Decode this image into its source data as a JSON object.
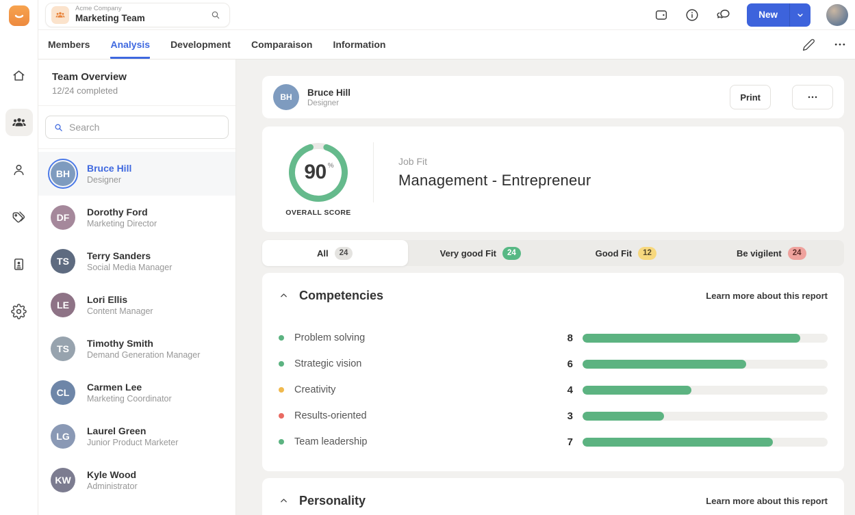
{
  "app": {
    "rail_icons": [
      "home",
      "team",
      "person",
      "tags",
      "id-card",
      "settings"
    ],
    "rail_active": "team"
  },
  "topbar": {
    "company": "Acme Company",
    "team": "Marketing Team",
    "new_label": "New",
    "action_icons": [
      "wallet",
      "info",
      "chat"
    ]
  },
  "tabs": [
    {
      "label": "Members",
      "active": false
    },
    {
      "label": "Analysis",
      "active": true
    },
    {
      "label": "Development",
      "active": false
    },
    {
      "label": "Comparaison",
      "active": false
    },
    {
      "label": "Information",
      "active": false
    }
  ],
  "member_panel": {
    "title": "Team Overview",
    "subtitle": "12/24 completed",
    "search_placeholder": "Search",
    "members": [
      {
        "name": "Bruce Hill",
        "role": "Designer",
        "selected": true
      },
      {
        "name": "Dorothy Ford",
        "role": "Marketing Director",
        "selected": false
      },
      {
        "name": "Terry Sanders",
        "role": "Social Media Manager",
        "selected": false
      },
      {
        "name": "Lori Ellis",
        "role": "Content Manager",
        "selected": false
      },
      {
        "name": "Timothy Smith",
        "role": "Demand Generation Manager",
        "selected": false
      },
      {
        "name": "Carmen Lee",
        "role": "Marketing Coordinator",
        "selected": false
      },
      {
        "name": "Laurel Green",
        "role": "Junior Product Marketer",
        "selected": false
      },
      {
        "name": "Kyle Wood",
        "role": "Administrator",
        "selected": false
      }
    ]
  },
  "report": {
    "header": {
      "name": "Bruce Hill",
      "role": "Designer",
      "print_label": "Print"
    },
    "overall": {
      "value": 90,
      "display": "90",
      "unit": "%",
      "label": "OVERALL SCORE"
    },
    "job_fit": {
      "label": "Job Fit",
      "value": "Management - Entrepreneur"
    },
    "filters": [
      {
        "label": "All",
        "count": "24",
        "variant": "gray",
        "active": true
      },
      {
        "label": "Very good Fit",
        "count": "24",
        "variant": "green",
        "active": false
      },
      {
        "label": "Good Fit",
        "count": "12",
        "variant": "yellow",
        "active": false
      },
      {
        "label": "Be vigilent",
        "count": "24",
        "variant": "red",
        "active": false
      }
    ],
    "competencies": {
      "title": "Competencies",
      "learn_more": "Learn more about this report",
      "scale_max": 9,
      "rows": [
        {
          "label": "Problem solving",
          "value": 8,
          "dot": "green"
        },
        {
          "label": "Strategic vision",
          "value": 6,
          "dot": "green"
        },
        {
          "label": "Creativity",
          "value": 4,
          "dot": "yellow"
        },
        {
          "label": "Results-oriented",
          "value": 3,
          "dot": "red"
        },
        {
          "label": "Team leadership",
          "value": 7,
          "dot": "green"
        }
      ]
    },
    "personality": {
      "title": "Personality",
      "learn_more": "Learn more about this report"
    }
  },
  "colors": {
    "accent_blue": "#3E68DF",
    "button_blue": "#3D63DC",
    "green": "#5CB381",
    "yellow": "#F0B94E",
    "red": "#E96A62",
    "badge_green": "#57B884",
    "badge_yellow": "#F7D87E",
    "badge_red": "#EFA29D",
    "badge_gray": "#E4E3E0",
    "ring_green": "#65BA8C",
    "logo_orange": "#F0924B",
    "main_bg": "#F2F1EF"
  }
}
